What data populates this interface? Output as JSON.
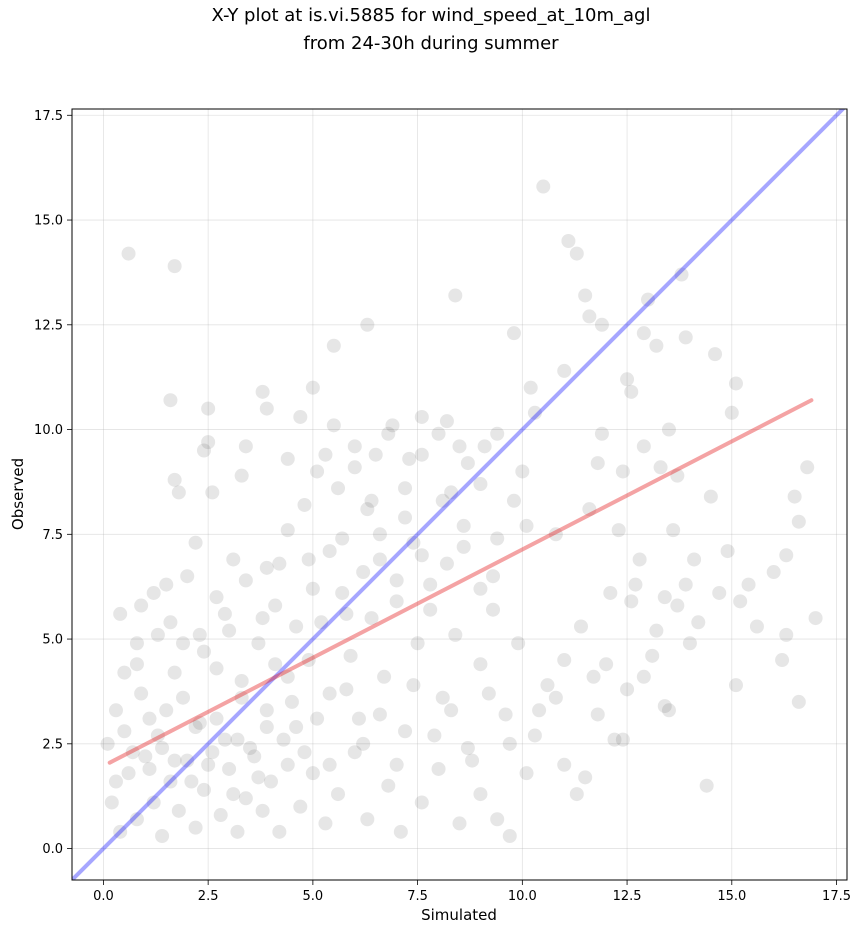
{
  "chart_data": {
    "type": "scatter",
    "title_lines": [
      "X-Y plot at is.vi.5885 for wind_speed_at_10m_agl",
      "from 24-30h during summer"
    ],
    "xlabel": "Simulated",
    "ylabel": "Observed",
    "xlim": [
      -0.75,
      17.75
    ],
    "ylim": [
      -0.75,
      17.65
    ],
    "xticks": [
      0.0,
      2.5,
      5.0,
      7.5,
      10.0,
      12.5,
      15.0,
      17.5
    ],
    "yticks": [
      0.0,
      2.5,
      5.0,
      7.5,
      10.0,
      12.5,
      15.0,
      17.5
    ],
    "xtick_labels": [
      "0.0",
      "2.5",
      "5.0",
      "7.5",
      "10.0",
      "12.5",
      "15.0",
      "17.5"
    ],
    "ytick_labels": [
      "0.0",
      "2.5",
      "5.0",
      "7.5",
      "10.0",
      "12.5",
      "15.0",
      "17.5"
    ],
    "grid": true,
    "point_color": "#404040",
    "one_to_one_color": "#0000ff",
    "fit_color": "#e31a1c",
    "one_to_one_line": {
      "x": [
        -0.75,
        17.75
      ],
      "y": [
        -0.75,
        17.75
      ]
    },
    "fit_line": {
      "x": [
        0.15,
        16.9
      ],
      "y": [
        2.05,
        10.7
      ]
    },
    "points": [
      [
        0.6,
        14.2
      ],
      [
        1.7,
        13.9
      ],
      [
        10.5,
        15.8
      ],
      [
        11.1,
        14.5
      ],
      [
        11.3,
        14.2
      ],
      [
        8.4,
        13.2
      ],
      [
        11.5,
        13.2
      ],
      [
        11.6,
        12.7
      ],
      [
        13.0,
        13.1
      ],
      [
        13.8,
        13.7
      ],
      [
        6.3,
        12.5
      ],
      [
        5.5,
        12.0
      ],
      [
        9.8,
        12.3
      ],
      [
        11.9,
        12.5
      ],
      [
        12.9,
        12.3
      ],
      [
        13.2,
        12.0
      ],
      [
        13.9,
        12.2
      ],
      [
        14.6,
        11.8
      ],
      [
        1.6,
        10.7
      ],
      [
        2.5,
        10.5
      ],
      [
        3.8,
        10.9
      ],
      [
        3.9,
        10.5
      ],
      [
        5.0,
        11.0
      ],
      [
        7.6,
        10.3
      ],
      [
        10.2,
        11.0
      ],
      [
        10.3,
        10.4
      ],
      [
        11.0,
        11.4
      ],
      [
        12.5,
        11.2
      ],
      [
        15.1,
        11.1
      ],
      [
        15.0,
        10.4
      ],
      [
        1.8,
        8.5
      ],
      [
        2.4,
        9.5
      ],
      [
        2.5,
        9.7
      ],
      [
        3.4,
        9.6
      ],
      [
        3.3,
        8.9
      ],
      [
        4.4,
        9.3
      ],
      [
        5.3,
        9.4
      ],
      [
        6.0,
        9.6
      ],
      [
        6.5,
        9.4
      ],
      [
        8.5,
        9.6
      ],
      [
        9.1,
        9.6
      ],
      [
        10.0,
        9.0
      ],
      [
        11.8,
        9.2
      ],
      [
        13.3,
        9.1
      ],
      [
        13.7,
        8.9
      ],
      [
        14.5,
        8.4
      ],
      [
        0.9,
        5.8
      ],
      [
        1.5,
        6.3
      ],
      [
        1.7,
        8.8
      ],
      [
        2.2,
        7.3
      ],
      [
        2.6,
        8.5
      ],
      [
        3.1,
        6.9
      ],
      [
        3.9,
        6.7
      ],
      [
        4.4,
        7.6
      ],
      [
        4.9,
        6.9
      ],
      [
        5.7,
        7.4
      ],
      [
        6.3,
        8.1
      ],
      [
        6.6,
        6.9
      ],
      [
        7.2,
        7.9
      ],
      [
        7.6,
        7.0
      ],
      [
        8.1,
        8.3
      ],
      [
        8.6,
        7.2
      ],
      [
        9.3,
        6.5
      ],
      [
        10.1,
        7.7
      ],
      [
        10.8,
        7.5
      ],
      [
        11.6,
        8.1
      ],
      [
        12.3,
        7.6
      ],
      [
        12.8,
        6.9
      ],
      [
        13.6,
        7.6
      ],
      [
        14.1,
        6.9
      ],
      [
        14.9,
        7.1
      ],
      [
        15.4,
        6.3
      ],
      [
        16.0,
        6.6
      ],
      [
        16.3,
        7.0
      ],
      [
        16.5,
        8.4
      ],
      [
        16.6,
        7.8
      ],
      [
        16.8,
        9.1
      ],
      [
        0.3,
        3.3
      ],
      [
        0.5,
        2.8
      ],
      [
        0.8,
        4.4
      ],
      [
        1.1,
        3.1
      ],
      [
        1.3,
        5.1
      ],
      [
        1.4,
        2.4
      ],
      [
        1.7,
        4.2
      ],
      [
        1.9,
        3.6
      ],
      [
        2.2,
        2.9
      ],
      [
        2.4,
        4.7
      ],
      [
        2.7,
        3.1
      ],
      [
        2.9,
        5.6
      ],
      [
        3.2,
        2.6
      ],
      [
        3.3,
        4.0
      ],
      [
        3.7,
        4.9
      ],
      [
        3.9,
        3.3
      ],
      [
        4.1,
        5.8
      ],
      [
        4.4,
        4.1
      ],
      [
        4.6,
        2.9
      ],
      [
        4.9,
        4.5
      ],
      [
        5.2,
        5.4
      ],
      [
        5.4,
        3.7
      ],
      [
        5.7,
        6.1
      ],
      [
        5.9,
        4.6
      ],
      [
        6.1,
        3.1
      ],
      [
        6.4,
        5.5
      ],
      [
        6.7,
        4.1
      ],
      [
        7.0,
        5.9
      ],
      [
        7.2,
        2.8
      ],
      [
        7.5,
        4.9
      ],
      [
        7.8,
        6.3
      ],
      [
        8.1,
        3.6
      ],
      [
        8.4,
        5.1
      ],
      [
        8.7,
        2.4
      ],
      [
        9.0,
        4.4
      ],
      [
        9.3,
        5.7
      ],
      [
        9.6,
        3.2
      ],
      [
        9.9,
        4.9
      ],
      [
        10.3,
        2.7
      ],
      [
        10.6,
        3.9
      ],
      [
        11.0,
        4.5
      ],
      [
        11.4,
        5.3
      ],
      [
        11.8,
        3.2
      ],
      [
        12.2,
        2.6
      ],
      [
        12.6,
        5.9
      ],
      [
        13.1,
        4.6
      ],
      [
        13.4,
        3.4
      ],
      [
        13.7,
        5.8
      ],
      [
        14.2,
        5.4
      ],
      [
        14.4,
        1.5
      ],
      [
        15.1,
        3.9
      ],
      [
        15.6,
        5.3
      ],
      [
        16.2,
        4.5
      ],
      [
        16.3,
        5.1
      ],
      [
        16.6,
        3.5
      ],
      [
        17.0,
        5.5
      ],
      [
        0.2,
        1.1
      ],
      [
        0.4,
        0.4
      ],
      [
        0.6,
        1.8
      ],
      [
        0.8,
        0.7
      ],
      [
        1.0,
        2.2
      ],
      [
        1.2,
        1.1
      ],
      [
        1.4,
        0.3
      ],
      [
        1.6,
        1.6
      ],
      [
        1.8,
        0.9
      ],
      [
        2.0,
        2.1
      ],
      [
        2.2,
        0.5
      ],
      [
        2.4,
        1.4
      ],
      [
        2.6,
        2.3
      ],
      [
        2.8,
        0.8
      ],
      [
        3.0,
        1.9
      ],
      [
        3.2,
        0.4
      ],
      [
        3.4,
        1.2
      ],
      [
        3.6,
        2.2
      ],
      [
        3.8,
        0.9
      ],
      [
        4.0,
        1.6
      ],
      [
        4.2,
        0.4
      ],
      [
        4.4,
        2.0
      ],
      [
        4.7,
        1.0
      ],
      [
        5.0,
        1.8
      ],
      [
        5.3,
        0.6
      ],
      [
        5.6,
        1.3
      ],
      [
        6.0,
        2.3
      ],
      [
        6.3,
        0.7
      ],
      [
        6.8,
        1.5
      ],
      [
        7.1,
        0.4
      ],
      [
        7.6,
        1.1
      ],
      [
        8.0,
        1.9
      ],
      [
        8.5,
        0.6
      ],
      [
        9.0,
        1.3
      ],
      [
        9.4,
        0.7
      ],
      [
        9.7,
        0.3
      ],
      [
        10.1,
        1.8
      ],
      [
        11.0,
        2.0
      ],
      [
        11.3,
        1.3
      ],
      [
        11.5,
        1.7
      ],
      [
        12.4,
        2.6
      ],
      [
        0.1,
        2.5
      ],
      [
        0.3,
        1.6
      ],
      [
        0.5,
        4.2
      ],
      [
        0.7,
        2.3
      ],
      [
        0.9,
        3.7
      ],
      [
        1.1,
        1.9
      ],
      [
        1.3,
        2.7
      ],
      [
        1.5,
        3.3
      ],
      [
        1.7,
        2.1
      ],
      [
        1.9,
        4.9
      ],
      [
        2.1,
        1.6
      ],
      [
        2.3,
        3.0
      ],
      [
        2.5,
        2.0
      ],
      [
        2.7,
        4.3
      ],
      [
        2.9,
        2.6
      ],
      [
        3.1,
        1.3
      ],
      [
        3.3,
        3.6
      ],
      [
        3.5,
        2.4
      ],
      [
        3.7,
        1.7
      ],
      [
        3.9,
        2.9
      ],
      [
        4.1,
        4.4
      ],
      [
        4.3,
        2.6
      ],
      [
        4.5,
        3.5
      ],
      [
        4.8,
        2.3
      ],
      [
        5.1,
        3.1
      ],
      [
        5.4,
        2.0
      ],
      [
        5.8,
        3.8
      ],
      [
        6.2,
        2.5
      ],
      [
        6.6,
        3.2
      ],
      [
        7.0,
        2.0
      ],
      [
        7.4,
        3.9
      ],
      [
        7.9,
        2.7
      ],
      [
        8.3,
        3.3
      ],
      [
        8.8,
        2.1
      ],
      [
        9.2,
        3.7
      ],
      [
        9.7,
        2.5
      ],
      [
        10.4,
        3.3
      ],
      [
        10.8,
        3.6
      ],
      [
        0.4,
        5.6
      ],
      [
        0.8,
        4.9
      ],
      [
        1.2,
        6.1
      ],
      [
        1.6,
        5.4
      ],
      [
        2.0,
        6.5
      ],
      [
        2.3,
        5.1
      ],
      [
        2.7,
        6.0
      ],
      [
        3.0,
        5.2
      ],
      [
        3.4,
        6.4
      ],
      [
        3.8,
        5.5
      ],
      [
        4.2,
        6.8
      ],
      [
        4.6,
        5.3
      ],
      [
        5.0,
        6.2
      ],
      [
        5.4,
        7.1
      ],
      [
        5.8,
        5.6
      ],
      [
        6.2,
        6.6
      ],
      [
        6.6,
        7.5
      ],
      [
        7.0,
        6.4
      ],
      [
        7.4,
        7.3
      ],
      [
        7.8,
        5.7
      ],
      [
        8.2,
        6.8
      ],
      [
        8.6,
        7.7
      ],
      [
        9.0,
        6.2
      ],
      [
        9.4,
        7.4
      ],
      [
        9.8,
        8.3
      ],
      [
        4.8,
        8.2
      ],
      [
        5.1,
        9.0
      ],
      [
        5.6,
        8.6
      ],
      [
        6.0,
        9.1
      ],
      [
        6.4,
        8.3
      ],
      [
        6.8,
        9.9
      ],
      [
        7.2,
        8.6
      ],
      [
        7.6,
        9.4
      ],
      [
        8.0,
        9.9
      ],
      [
        8.3,
        8.5
      ],
      [
        8.7,
        9.2
      ],
      [
        9.0,
        8.7
      ],
      [
        9.4,
        9.9
      ],
      [
        4.7,
        10.3
      ],
      [
        5.5,
        10.1
      ],
      [
        6.9,
        10.1
      ],
      [
        7.3,
        9.3
      ],
      [
        8.2,
        10.2
      ],
      [
        12.1,
        6.1
      ],
      [
        12.7,
        6.3
      ],
      [
        13.2,
        5.2
      ],
      [
        13.9,
        6.3
      ],
      [
        14.7,
        6.1
      ],
      [
        15.2,
        5.9
      ],
      [
        12.0,
        4.4
      ],
      [
        12.9,
        4.1
      ],
      [
        13.4,
        6.0
      ],
      [
        14.0,
        4.9
      ],
      [
        12.5,
        3.8
      ],
      [
        13.5,
        3.3
      ],
      [
        11.7,
        4.1
      ],
      [
        12.4,
        9.0
      ],
      [
        11.9,
        9.9
      ],
      [
        12.9,
        9.6
      ],
      [
        13.5,
        10.0
      ],
      [
        12.6,
        10.9
      ]
    ]
  }
}
